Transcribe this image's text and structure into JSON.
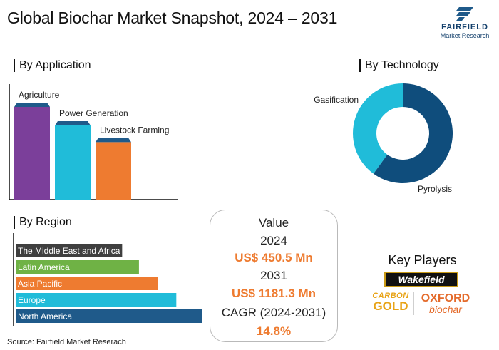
{
  "title": "Global Biochar Market Snapshot, 2024 – 2031",
  "logo": {
    "brand": "FAIRFIELD",
    "sub": "Market Research"
  },
  "application": {
    "section_title": "By Application",
    "chart_data": {
      "type": "bar",
      "categories": [
        "Agriculture",
        "Power Generation",
        "Livestock Farming"
      ],
      "values": [
        100,
        80,
        62
      ],
      "colors": [
        "#7b3f9a",
        "#20bcd9",
        "#ee7b30"
      ],
      "top_colors": [
        "#1f5a8a",
        "#1f5a8a",
        "#1f5a8a"
      ],
      "ylim": [
        0,
        100
      ]
    }
  },
  "technology": {
    "section_title": "By Technology",
    "chart_data": {
      "type": "pie",
      "categories": [
        "Pyrolysis",
        "Gasification"
      ],
      "values": [
        60,
        40
      ],
      "colors": [
        "#0f4d7c",
        "#20bcd9"
      ]
    }
  },
  "region": {
    "section_title": "By Region",
    "chart_data": {
      "type": "bar",
      "orientation": "horizontal",
      "categories": [
        "The Middle East and Africa",
        "Latin America",
        "Asia Pacific",
        "Europe",
        "North America"
      ],
      "values": [
        57,
        66,
        76,
        86,
        100
      ],
      "colors": [
        "#3f3f3f",
        "#6fb245",
        "#ee7b30",
        "#20bcd9",
        "#1f5a8a"
      ],
      "xlim": [
        0,
        100
      ]
    }
  },
  "value_box": {
    "label": "Value",
    "year1": "2024",
    "value1": "US$ 450.5 Mn",
    "year2": "2031",
    "value2": "US$ 1181.3 Mn",
    "cagr_label": "CAGR (2024-2031)",
    "cagr_value": "14.8%"
  },
  "key_players": {
    "title": "Key Players",
    "wakefield": "Wakefield",
    "carbon_top": "CARBON",
    "carbon_bottom": "GOLD",
    "oxford_top": "OXFORD",
    "oxford_bottom": "biochar"
  },
  "source": "Source: Fairfield Market Reserach"
}
